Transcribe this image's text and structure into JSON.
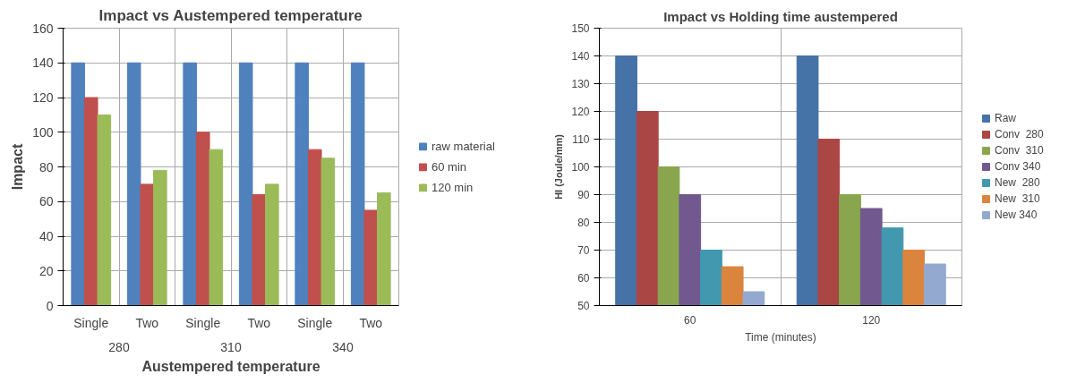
{
  "chart_data": [
    {
      "type": "bar",
      "title": "Impact vs Austempered temperature",
      "xlabel": "Austempered temperature",
      "ylabel": "Impact",
      "categories": [
        "Single",
        "Two",
        "Single",
        "Two",
        "Single",
        "Two"
      ],
      "annotations": [
        "280",
        "310",
        "340"
      ],
      "series": [
        {
          "name": "raw material",
          "color": "#4f81bd",
          "values": [
            140,
            140,
            140,
            140,
            140,
            140
          ]
        },
        {
          "name": "60 min",
          "color": "#c0504d",
          "values": [
            120,
            70,
            100,
            64,
            90,
            55
          ]
        },
        {
          "name": "120 min",
          "color": "#9bbb59",
          "values": [
            110,
            78,
            90,
            70,
            85,
            65
          ]
        }
      ],
      "ylim": [
        0,
        160
      ],
      "yticks": [
        0,
        20,
        40,
        60,
        80,
        100,
        120,
        140,
        160
      ],
      "grid": true,
      "legend": "right"
    },
    {
      "type": "bar",
      "title": "Impact vs Holding time austempered",
      "xlabel": "Time (minutes)",
      "ylabel": "HI (Joule/mm)",
      "categories": [
        "60",
        "120"
      ],
      "series": [
        {
          "name": "Raw",
          "color": "#4572a7",
          "values": [
            140,
            140
          ]
        },
        {
          "name": "Conv  280",
          "color": "#aa4643",
          "values": [
            120,
            110
          ]
        },
        {
          "name": "Conv  310",
          "color": "#89a54e",
          "values": [
            100,
            90
          ]
        },
        {
          "name": "Conv 340",
          "color": "#71588f",
          "values": [
            90,
            85
          ]
        },
        {
          "name": "New  280",
          "color": "#4198af",
          "values": [
            70,
            78
          ]
        },
        {
          "name": "New  310",
          "color": "#db843d",
          "values": [
            64,
            70
          ]
        },
        {
          "name": "New 340",
          "color": "#93a9cf",
          "values": [
            55,
            65
          ]
        }
      ],
      "ylim": [
        50,
        150
      ],
      "yticks": [
        50,
        60,
        70,
        80,
        90,
        100,
        110,
        120,
        130,
        140,
        150
      ],
      "grid": true,
      "legend": "right"
    }
  ]
}
